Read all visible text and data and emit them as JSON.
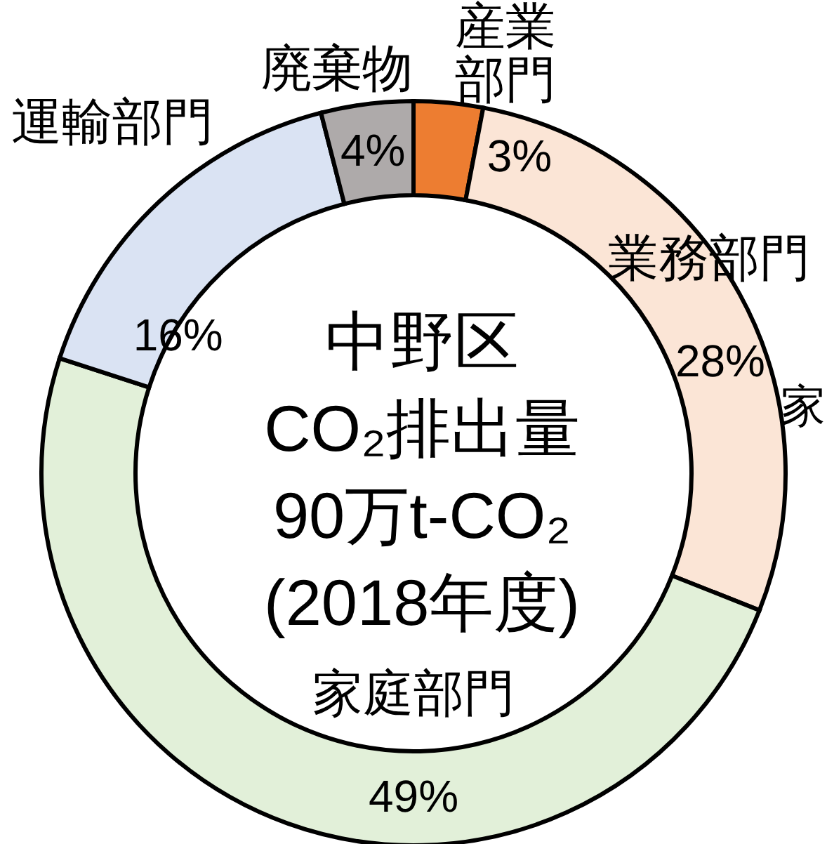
{
  "chart_data": {
    "type": "donut",
    "title": "中野区",
    "subtitle": "CO₂排出量\n90万t-CO₂\n(2018年度)",
    "categories": [
      "産業部門",
      "業務部門",
      "家庭部門",
      "運輸部門",
      "廃棄物"
    ],
    "values": [
      3,
      28,
      49,
      16,
      4
    ],
    "colors": [
      "#ed7d31",
      "#fbe5d6",
      "#e2f0d9",
      "#dae3f3",
      "#aeaaaa"
    ],
    "value_labels": [
      "3%",
      "28%",
      "49%",
      "16%",
      "4%"
    ],
    "annotations": [
      "家"
    ]
  }
}
